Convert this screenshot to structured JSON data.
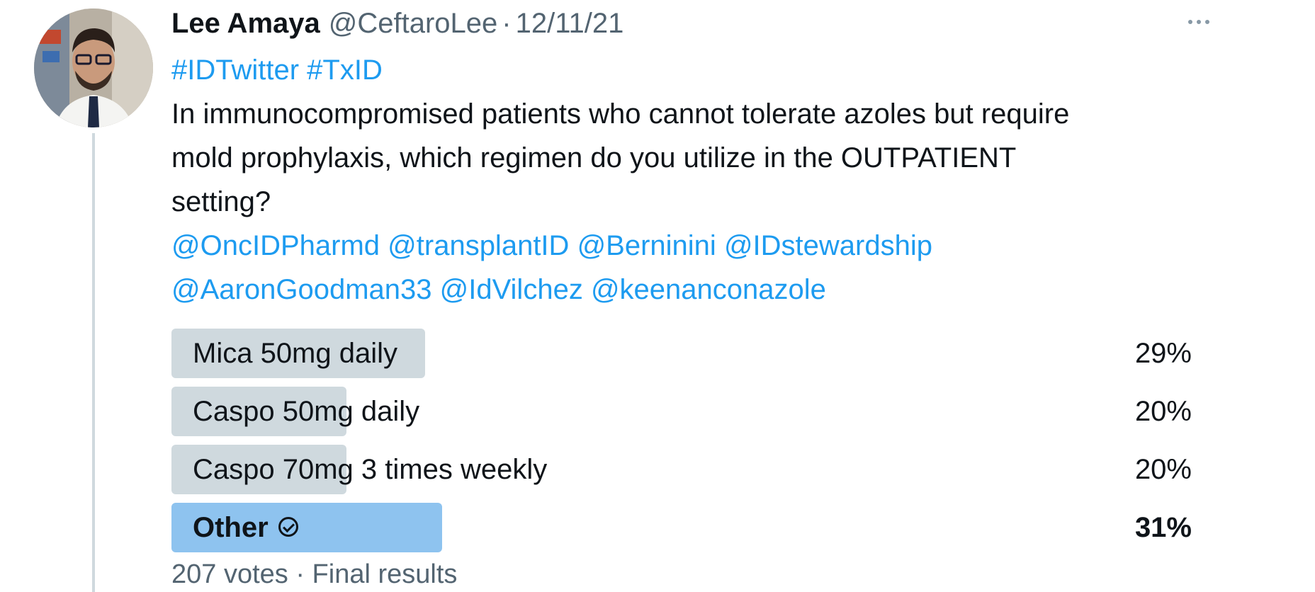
{
  "tweet": {
    "author_name": "Lee Amaya",
    "author_handle": "@CeftaroLee",
    "separator": "·",
    "date": "12/11/21",
    "more_icon": "more-horizontal-icon",
    "hashtags": [
      "#IDTwitter",
      "#TxID"
    ],
    "body_lines": [
      "In immunocompromised patients who cannot tolerate azoles but require",
      "mold prophylaxis, which regimen do you utilize in the OUTPATIENT",
      "setting?"
    ],
    "mentions_line1": [
      "@OncIDPharmd",
      "@transplantID",
      "@Berninini",
      "@IDstewardship"
    ],
    "mentions_line2": [
      "@AaronGoodman33",
      "@IdVilchez",
      "@keenanconazole"
    ]
  },
  "poll": {
    "options": [
      {
        "label": "Mica 50mg daily",
        "percent_text": "29%",
        "percent": 29,
        "winner": false
      },
      {
        "label": "Caspo 50mg daily",
        "percent_text": "20%",
        "percent": 20,
        "winner": false
      },
      {
        "label": "Caspo 70mg 3 times weekly",
        "percent_text": "20%",
        "percent": 20,
        "winner": false
      },
      {
        "label": "Other",
        "percent_text": "31%",
        "percent": 31,
        "winner": true
      }
    ],
    "footer": "207 votes · Final results",
    "winner_icon": "check-circle-icon",
    "colors": {
      "bar": "#cfd9de",
      "winner_bar": "#8ec3ef",
      "link": "#1d9bf0"
    }
  }
}
